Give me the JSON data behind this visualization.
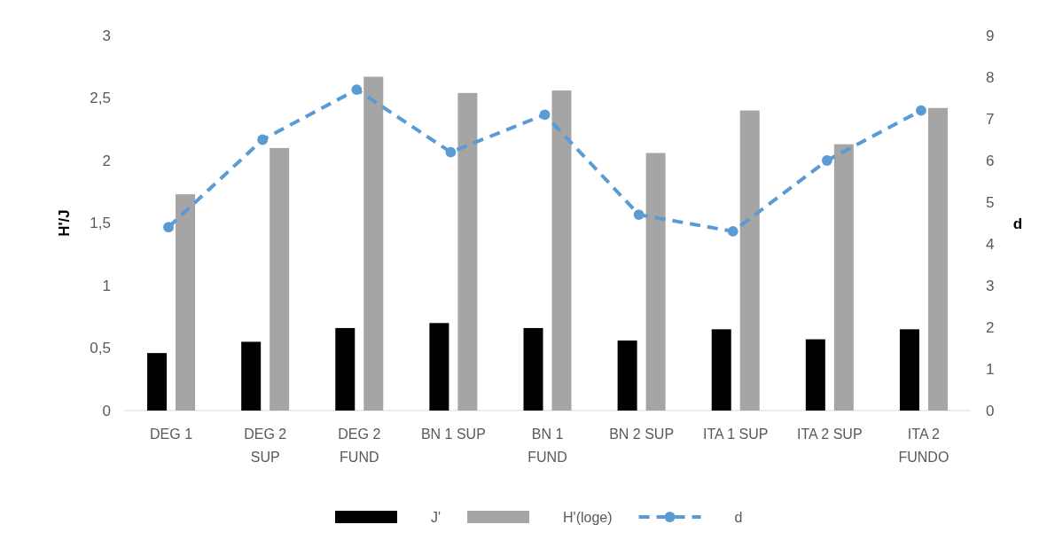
{
  "chart_data": {
    "type": "bar",
    "categories": [
      "DEG 1",
      "DEG 2 SUP",
      "DEG 2 FUND",
      "BN 1 SUP",
      "BN 1 FUND",
      "BN 2 SUP",
      "ITA 1 SUP",
      "ITA 2 SUP",
      "ITA 2 FUNDO"
    ],
    "series": [
      {
        "name": "J'",
        "color": "#000000",
        "values": [
          0.46,
          0.55,
          0.66,
          0.7,
          0.66,
          0.56,
          0.65,
          0.57,
          0.65
        ]
      },
      {
        "name": "H'(loge)",
        "color": "#a5a5a5",
        "values": [
          1.73,
          2.1,
          2.67,
          2.54,
          2.56,
          2.06,
          2.4,
          2.13,
          2.42
        ]
      },
      {
        "name": "d",
        "type": "line",
        "axis": "y2",
        "color": "#5b9bd5",
        "values": [
          4.4,
          6.5,
          7.7,
          6.2,
          7.1,
          4.7,
          4.3,
          6.0,
          7.2
        ]
      }
    ],
    "ylabel": "H'/J",
    "y2label": "d",
    "ylim": [
      0,
      3
    ],
    "yticks": [
      0,
      {
        "value": 0.5,
        "label": "0,5"
      },
      1,
      {
        "value": 1.5,
        "label": "1,5"
      },
      2,
      {
        "value": 2.5,
        "label": "2,5"
      },
      3
    ],
    "y2lim": [
      0,
      9
    ],
    "y2ticks": [
      0,
      1,
      2,
      3,
      4,
      5,
      6,
      7,
      8,
      9
    ],
    "legend": "bottom",
    "marker": "circle",
    "line_style": "dashed"
  }
}
